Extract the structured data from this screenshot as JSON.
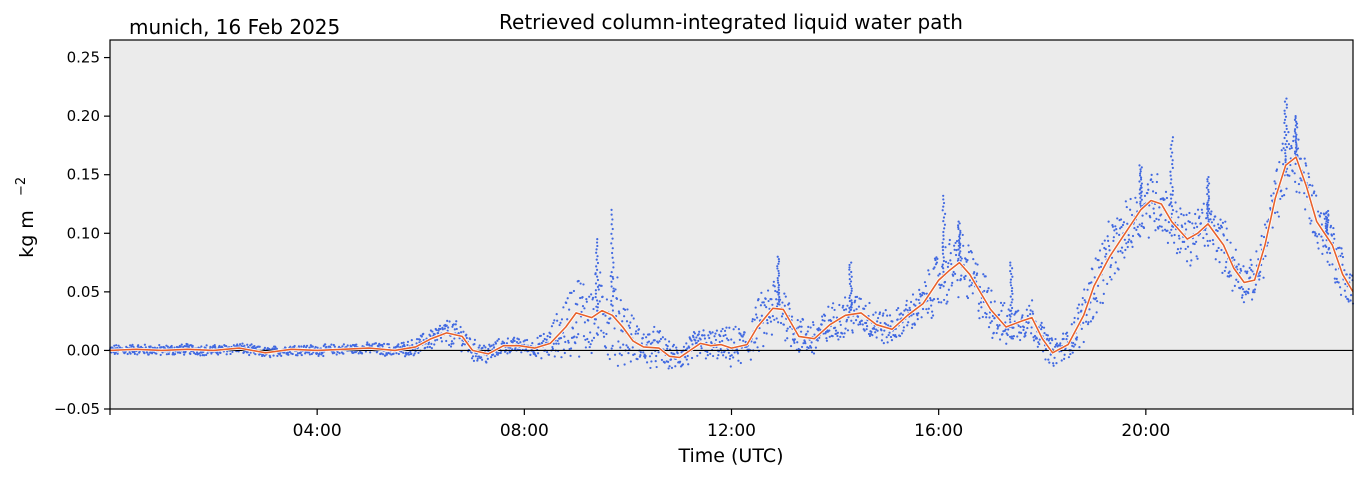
{
  "chart_data": {
    "type": "scatter",
    "title": "Retrieved column-integrated liquid water path",
    "station_label": "munich, 16 Feb 2025",
    "xlabel": "Time (UTC)",
    "ylabel": "kg m",
    "ylabel_exponent": "−2",
    "xlim": [
      0,
      24
    ],
    "ylim": [
      -0.05,
      0.265
    ],
    "yticks": [
      -0.05,
      0.0,
      0.05,
      0.1,
      0.15,
      0.2,
      0.25
    ],
    "ytick_labels": [
      "−0.05",
      "0.00",
      "0.05",
      "0.10",
      "0.15",
      "0.20",
      "0.25"
    ],
    "xticks": [
      4,
      8,
      12,
      16,
      20
    ],
    "xtick_labels": [
      "04:00",
      "08:00",
      "12:00",
      "16:00",
      "20:00"
    ],
    "reference_line_y": 0.0,
    "background_color": "#ebebeb",
    "series": [
      {
        "kind": "raw-scatter",
        "color": "#4169e1",
        "x": [
          0.0,
          0.5,
          1.0,
          1.5,
          2.0,
          2.5,
          3.0,
          3.5,
          4.0,
          4.5,
          5.0,
          5.5,
          5.9,
          6.2,
          6.5,
          6.8,
          7.0,
          7.3,
          7.6,
          7.9,
          8.2,
          8.5,
          8.8,
          9.0,
          9.3,
          9.5,
          9.7,
          9.9,
          10.1,
          10.3,
          10.6,
          10.8,
          11.0,
          11.2,
          11.4,
          11.6,
          11.8,
          12.0,
          12.3,
          12.5,
          12.8,
          13.0,
          13.3,
          13.6,
          13.9,
          14.2,
          14.5,
          14.8,
          15.1,
          15.4,
          15.7,
          16.0,
          16.2,
          16.4,
          16.6,
          16.8,
          17.0,
          17.3,
          17.6,
          17.8,
          18.0,
          18.2,
          18.5,
          18.8,
          19.0,
          19.3,
          19.6,
          19.9,
          20.1,
          20.3,
          20.5,
          20.8,
          21.0,
          21.2,
          21.5,
          21.7,
          21.9,
          22.1,
          22.3,
          22.5,
          22.7,
          22.9,
          23.1,
          23.3,
          23.6,
          23.8,
          24.0
        ],
        "y": [
          0.0,
          0.001,
          0.0,
          0.001,
          0.0,
          0.002,
          -0.002,
          0.001,
          0.0,
          0.001,
          0.002,
          0.0,
          0.003,
          0.01,
          0.015,
          0.012,
          0.0,
          -0.003,
          0.004,
          0.004,
          0.002,
          0.006,
          0.02,
          0.032,
          0.028,
          0.034,
          0.03,
          0.02,
          0.008,
          0.003,
          0.002,
          -0.005,
          -0.006,
          0.0,
          0.006,
          0.004,
          0.005,
          0.002,
          0.005,
          0.02,
          0.036,
          0.035,
          0.012,
          0.01,
          0.022,
          0.03,
          0.032,
          0.022,
          0.018,
          0.03,
          0.04,
          0.06,
          0.068,
          0.075,
          0.065,
          0.05,
          0.035,
          0.02,
          0.025,
          0.028,
          0.01,
          -0.002,
          0.005,
          0.03,
          0.055,
          0.08,
          0.1,
          0.12,
          0.128,
          0.125,
          0.11,
          0.095,
          0.1,
          0.108,
          0.09,
          0.07,
          0.058,
          0.06,
          0.09,
          0.13,
          0.158,
          0.165,
          0.14,
          0.11,
          0.09,
          0.065,
          0.05
        ],
        "spread": [
          0.004,
          0.004,
          0.004,
          0.004,
          0.004,
          0.004,
          0.004,
          0.004,
          0.004,
          0.004,
          0.004,
          0.005,
          0.006,
          0.008,
          0.01,
          0.01,
          0.008,
          0.008,
          0.006,
          0.006,
          0.006,
          0.012,
          0.025,
          0.03,
          0.03,
          0.03,
          0.04,
          0.025,
          0.018,
          0.015,
          0.015,
          0.01,
          0.01,
          0.012,
          0.012,
          0.012,
          0.012,
          0.015,
          0.015,
          0.02,
          0.025,
          0.02,
          0.015,
          0.015,
          0.015,
          0.015,
          0.015,
          0.015,
          0.012,
          0.012,
          0.015,
          0.025,
          0.025,
          0.025,
          0.022,
          0.022,
          0.02,
          0.015,
          0.015,
          0.015,
          0.012,
          0.01,
          0.012,
          0.02,
          0.025,
          0.025,
          0.022,
          0.022,
          0.025,
          0.025,
          0.02,
          0.02,
          0.02,
          0.02,
          0.02,
          0.02,
          0.015,
          0.015,
          0.02,
          0.02,
          0.025,
          0.025,
          0.025,
          0.022,
          0.022,
          0.02,
          0.02
        ]
      },
      {
        "kind": "smoothed-line",
        "color": "#e8622c",
        "x": [
          0.0,
          0.5,
          1.0,
          1.5,
          2.0,
          2.5,
          3.0,
          3.5,
          4.0,
          4.5,
          5.0,
          5.5,
          5.9,
          6.2,
          6.5,
          6.8,
          7.0,
          7.3,
          7.6,
          7.9,
          8.2,
          8.5,
          8.8,
          9.0,
          9.3,
          9.5,
          9.7,
          9.9,
          10.1,
          10.3,
          10.6,
          10.8,
          11.0,
          11.2,
          11.4,
          11.6,
          11.8,
          12.0,
          12.3,
          12.5,
          12.8,
          13.0,
          13.3,
          13.6,
          13.9,
          14.2,
          14.5,
          14.8,
          15.1,
          15.4,
          15.7,
          16.0,
          16.2,
          16.4,
          16.6,
          16.8,
          17.0,
          17.3,
          17.6,
          17.8,
          18.0,
          18.2,
          18.5,
          18.8,
          19.0,
          19.3,
          19.6,
          19.9,
          20.1,
          20.3,
          20.5,
          20.8,
          21.0,
          21.2,
          21.5,
          21.7,
          21.9,
          22.1,
          22.3,
          22.5,
          22.7,
          22.9,
          23.1,
          23.3,
          23.6,
          23.8,
          24.0
        ],
        "y": [
          0.0,
          0.001,
          0.0,
          0.001,
          0.0,
          0.002,
          -0.002,
          0.001,
          0.0,
          0.001,
          0.002,
          0.0,
          0.003,
          0.01,
          0.015,
          0.012,
          0.0,
          -0.003,
          0.004,
          0.004,
          0.002,
          0.006,
          0.02,
          0.032,
          0.028,
          0.034,
          0.03,
          0.02,
          0.008,
          0.003,
          0.002,
          -0.005,
          -0.006,
          0.0,
          0.006,
          0.004,
          0.005,
          0.002,
          0.005,
          0.02,
          0.036,
          0.035,
          0.012,
          0.01,
          0.022,
          0.03,
          0.032,
          0.022,
          0.018,
          0.03,
          0.04,
          0.06,
          0.068,
          0.075,
          0.065,
          0.05,
          0.035,
          0.02,
          0.025,
          0.028,
          0.01,
          -0.002,
          0.005,
          0.03,
          0.055,
          0.08,
          0.1,
          0.12,
          0.128,
          0.125,
          0.11,
          0.095,
          0.1,
          0.108,
          0.09,
          0.07,
          0.058,
          0.06,
          0.09,
          0.13,
          0.158,
          0.165,
          0.14,
          0.11,
          0.09,
          0.065,
          0.05
        ]
      }
    ],
    "spikes": [
      {
        "x": 9.7,
        "y": 0.12
      },
      {
        "x": 9.4,
        "y": 0.095
      },
      {
        "x": 12.9,
        "y": 0.08
      },
      {
        "x": 14.3,
        "y": 0.075
      },
      {
        "x": 16.1,
        "y": 0.132
      },
      {
        "x": 16.4,
        "y": 0.11
      },
      {
        "x": 17.4,
        "y": 0.075
      },
      {
        "x": 19.9,
        "y": 0.158
      },
      {
        "x": 20.5,
        "y": 0.182
      },
      {
        "x": 21.2,
        "y": 0.148
      },
      {
        "x": 22.7,
        "y": 0.215
      },
      {
        "x": 22.9,
        "y": 0.2
      },
      {
        "x": 23.5,
        "y": 0.118
      }
    ]
  }
}
